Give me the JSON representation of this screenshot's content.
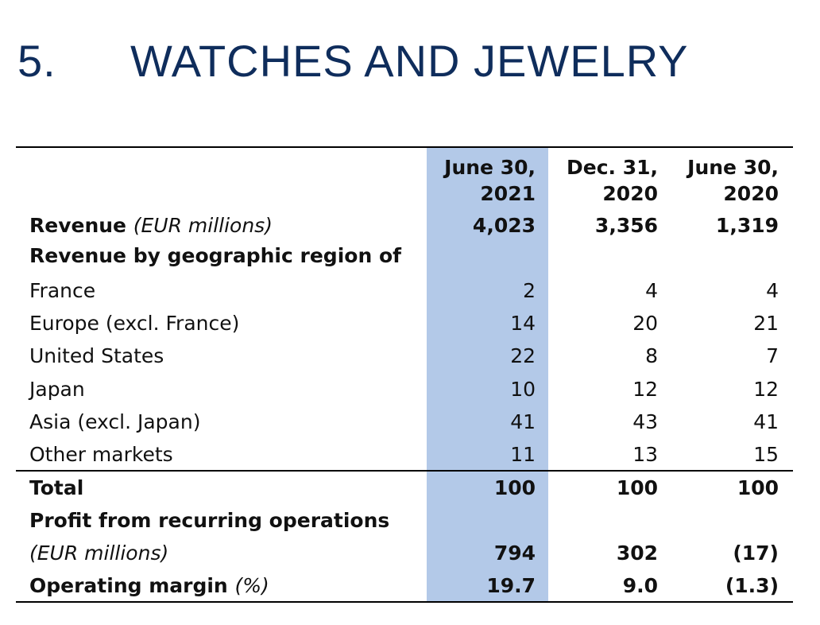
{
  "title": {
    "number": "5.",
    "text": "WATCHES AND JEWELRY"
  },
  "columns": [
    {
      "line1": "June 30,",
      "line2": "2021"
    },
    {
      "line1": "Dec. 31,",
      "line2": "2020"
    },
    {
      "line1": "June 30,",
      "line2": "2020"
    }
  ],
  "revenue": {
    "label": "Revenue",
    "unit": "(EUR millions)",
    "values": [
      "4,023",
      "3,356",
      "1,319"
    ]
  },
  "region_heading": "Revenue by geographic region of",
  "regions": [
    {
      "label": "France",
      "values": [
        "2",
        "4",
        "4"
      ]
    },
    {
      "label": "Europe (excl. France)",
      "values": [
        "14",
        "20",
        "21"
      ]
    },
    {
      "label": "United States",
      "values": [
        "22",
        "8",
        "7"
      ]
    },
    {
      "label": "Japan",
      "values": [
        "10",
        "12",
        "12"
      ]
    },
    {
      "label": "Asia (excl. Japan)",
      "values": [
        "41",
        "43",
        "41"
      ]
    },
    {
      "label": "Other markets",
      "values": [
        "11",
        "13",
        "15"
      ]
    }
  ],
  "total": {
    "label": "Total",
    "values": [
      "100",
      "100",
      "100"
    ]
  },
  "profit": {
    "label": "Profit from recurring operations",
    "unit": "(EUR millions)",
    "values": [
      "794",
      "302",
      "(17)"
    ]
  },
  "margin": {
    "label": "Operating margin",
    "unit": "(%)",
    "values": [
      "19.7",
      "9.0",
      "(1.3)"
    ]
  },
  "colors": {
    "title": "#0f2d5c",
    "highlight": "#b3c9e8"
  }
}
